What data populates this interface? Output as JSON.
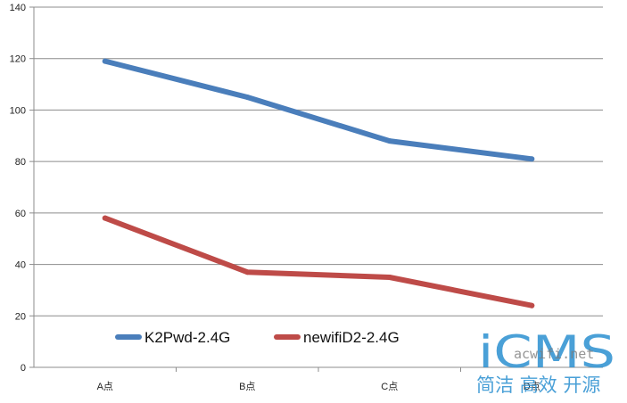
{
  "chart_data": {
    "type": "line",
    "title": "",
    "xlabel": "",
    "ylabel": "",
    "categories": [
      "A点",
      "B点",
      "C点",
      "D点"
    ],
    "ylim": [
      0,
      140
    ],
    "yticks": [
      0,
      20,
      40,
      60,
      80,
      100,
      120,
      140
    ],
    "grid": true,
    "legend_position": "bottom-left",
    "series": [
      {
        "name": "K2Pwd-2.4G",
        "values": [
          119,
          105,
          88,
          81
        ],
        "color": "#4a7ebb"
      },
      {
        "name": "newifiD2-2.4G",
        "values": [
          58,
          37,
          35,
          24
        ],
        "color": "#be4b48"
      }
    ]
  },
  "watermark": {
    "logo": "iCMS",
    "site": "acwifi.net",
    "slogan": "简洁 高效 开源",
    "color": "#2a8fd0"
  }
}
